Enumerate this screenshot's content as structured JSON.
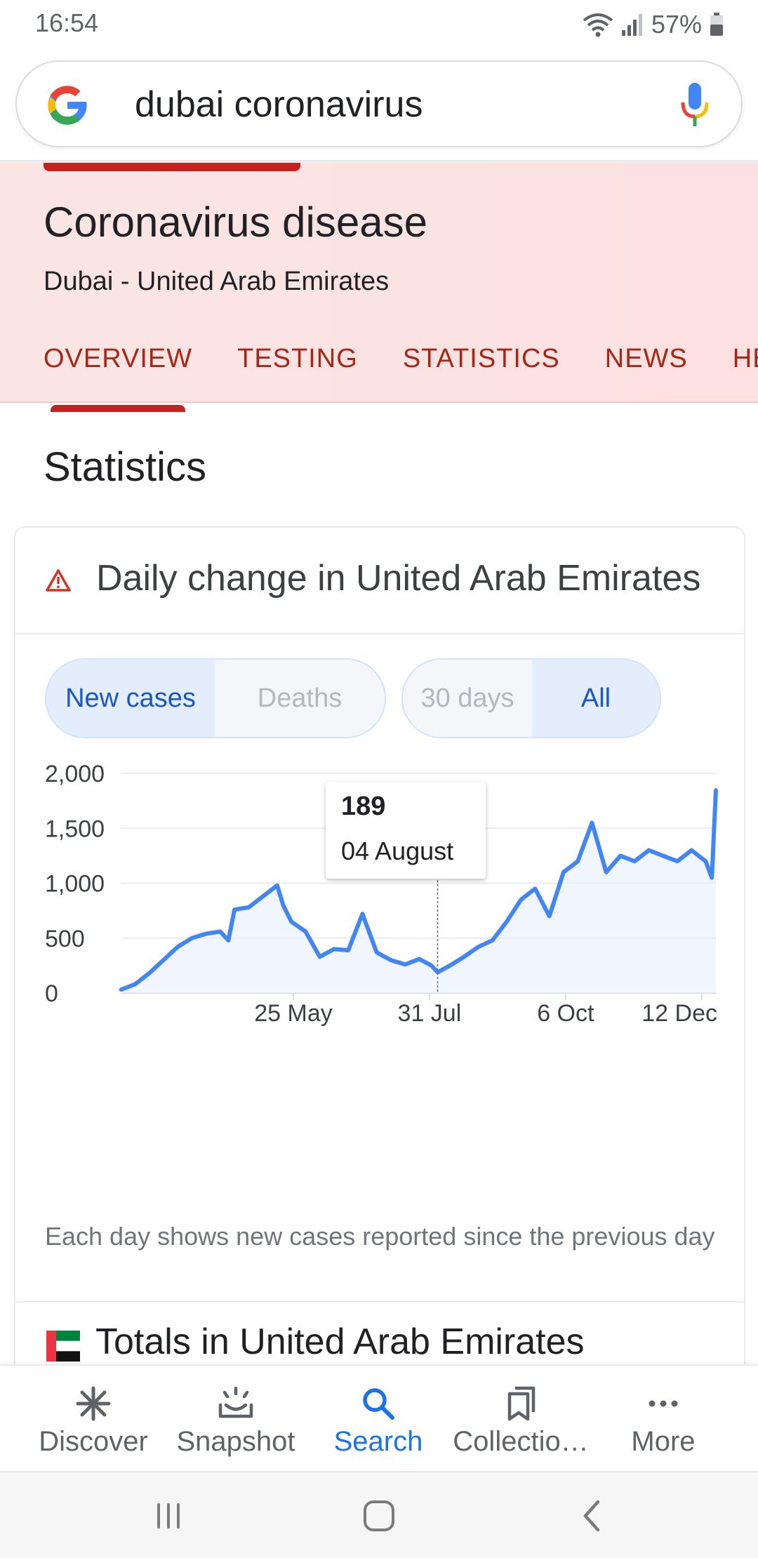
{
  "status_bar": {
    "time": "16:54",
    "battery": "57%"
  },
  "search": {
    "query": "dubai coronavirus"
  },
  "hero": {
    "title": "Coronavirus disease",
    "subtitle": "Dubai - United Arab Emirates",
    "tabs": [
      "OVERVIEW",
      "TESTING",
      "STATISTICS",
      "NEWS",
      "HE"
    ]
  },
  "statistics": {
    "section_title": "Statistics",
    "card_title": "Daily change in United Arab Emirates",
    "metric_toggle": [
      "New cases",
      "Deaths"
    ],
    "range_toggle": [
      "30 days",
      "All"
    ],
    "tooltip": {
      "value": "189",
      "date": "04 August"
    },
    "caption": "Each day shows new cases reported since the previous day",
    "totals_title": "Totals in United Arab Emirates"
  },
  "chart_data": {
    "type": "area",
    "title": "",
    "xlabel": "",
    "ylabel": "",
    "y_ticks": [
      "2,000",
      "1,500",
      "1,000",
      "500",
      "0"
    ],
    "x_ticks": [
      "25 May",
      "31 Jul",
      "6 Oct",
      "12 Dec"
    ],
    "ylim": [
      0,
      2000
    ],
    "grid": true,
    "accent_color": "#4285f4",
    "series": [
      {
        "x": [
          "2020-03-01",
          "2020-03-08",
          "2020-03-15",
          "2020-03-22",
          "2020-03-29",
          "2020-04-05",
          "2020-04-12",
          "2020-04-19",
          "2020-04-23",
          "2020-04-26",
          "2020-05-03",
          "2020-05-10",
          "2020-05-17",
          "2020-05-20",
          "2020-05-24",
          "2020-05-31",
          "2020-06-07",
          "2020-06-14",
          "2020-06-21",
          "2020-06-28",
          "2020-07-05",
          "2020-07-12",
          "2020-07-19",
          "2020-07-26",
          "2020-08-01",
          "2020-08-04",
          "2020-08-10",
          "2020-08-17",
          "2020-08-24",
          "2020-08-31",
          "2020-09-07",
          "2020-09-14",
          "2020-09-21",
          "2020-09-28",
          "2020-10-05",
          "2020-10-12",
          "2020-10-19",
          "2020-10-26",
          "2020-11-02",
          "2020-11-09",
          "2020-11-16",
          "2020-11-23",
          "2020-11-30",
          "2020-12-07",
          "2020-12-14",
          "2020-12-17",
          "2020-12-19"
        ],
        "values": [
          30,
          80,
          180,
          300,
          420,
          500,
          540,
          560,
          480,
          760,
          780,
          880,
          980,
          800,
          650,
          560,
          330,
          400,
          390,
          720,
          370,
          300,
          260,
          310,
          250,
          189,
          250,
          330,
          420,
          480,
          650,
          850,
          950,
          700,
          1100,
          1200,
          1550,
          1100,
          1250,
          1200,
          1300,
          1250,
          1200,
          1300,
          1200,
          1050,
          1850
        ]
      }
    ]
  },
  "bottom_nav": {
    "items": [
      {
        "label": "Discover",
        "icon": "asterisk-icon"
      },
      {
        "label": "Snapshot",
        "icon": "snapshot-icon"
      },
      {
        "label": "Search",
        "icon": "search-icon"
      },
      {
        "label": "Collectio…",
        "icon": "collections-icon"
      },
      {
        "label": "More",
        "icon": "more-dots-icon"
      }
    ],
    "active": "Search"
  }
}
